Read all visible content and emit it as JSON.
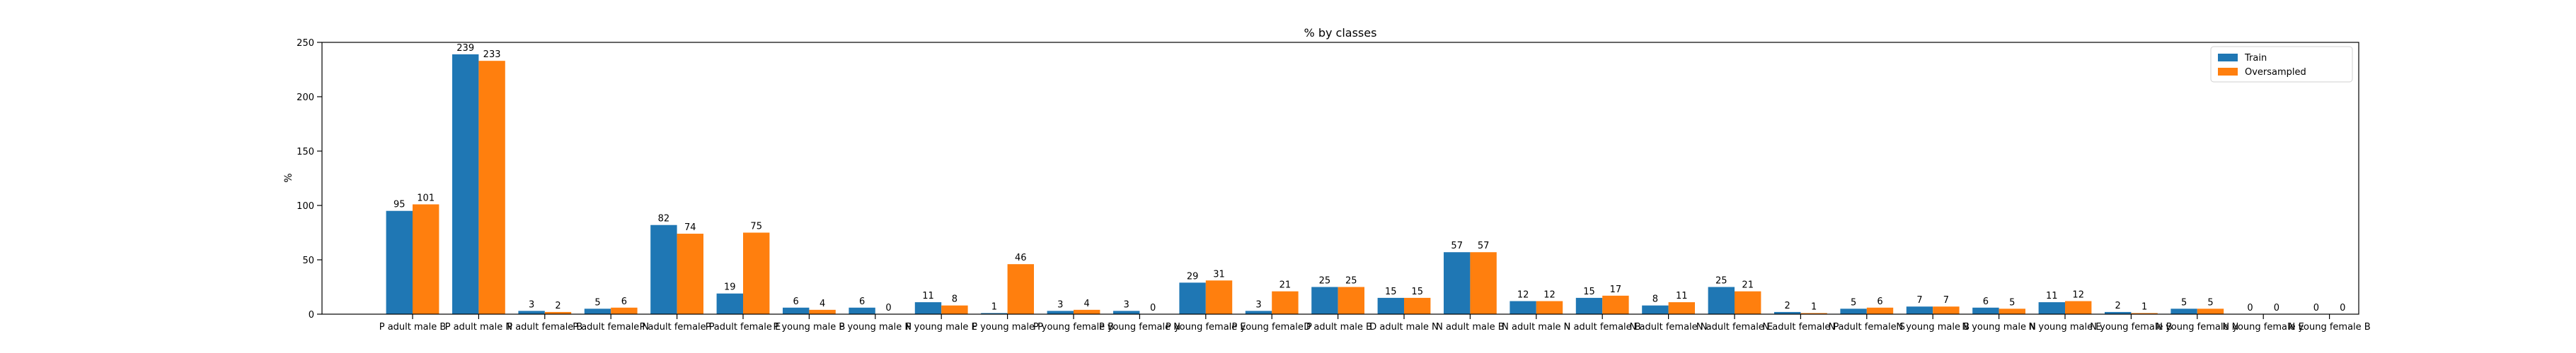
{
  "chart_data": {
    "type": "bar",
    "title": "% by classes",
    "xlabel": "",
    "ylabel": "%",
    "ylim": [
      0,
      250
    ],
    "yticks": [
      0,
      50,
      100,
      150,
      200,
      250
    ],
    "grid": false,
    "legend_position": "top-right",
    "categories": [
      "P adult male B",
      "P adult male N",
      "P adult female B",
      "P adult female N",
      "P adult female P",
      "P adult female E",
      "P young male B",
      "P young male N",
      "P young male E",
      "P young male P",
      "P young female B",
      "P young female N",
      "P young female E",
      "P young female P",
      "D adult male B",
      "D adult male N",
      "N adult male B",
      "N adult male N",
      "N adult female B",
      "N adult female N",
      "N adult female E",
      "N adult female P",
      "N adult female S",
      "N young male B",
      "N young male N",
      "N young male E",
      "N young female B",
      "N young female N",
      "N young female E",
      "N young female B"
    ],
    "series": [
      {
        "name": "Train",
        "color": "#1f77b4",
        "values": [
          95,
          239,
          3,
          5,
          82,
          19,
          6,
          6,
          11,
          1,
          3,
          3,
          29,
          3,
          25,
          15,
          57,
          12,
          15,
          8,
          25,
          2,
          5,
          7,
          6,
          11,
          2,
          5,
          0,
          0
        ]
      },
      {
        "name": "Oversampled",
        "color": "#ff7f0e",
        "values": [
          101,
          233,
          2,
          6,
          74,
          75,
          4,
          0,
          8,
          46,
          4,
          0,
          31,
          21,
          25,
          15,
          57,
          12,
          17,
          11,
          21,
          1,
          6,
          7,
          5,
          12,
          1,
          5,
          0,
          0
        ]
      }
    ]
  }
}
